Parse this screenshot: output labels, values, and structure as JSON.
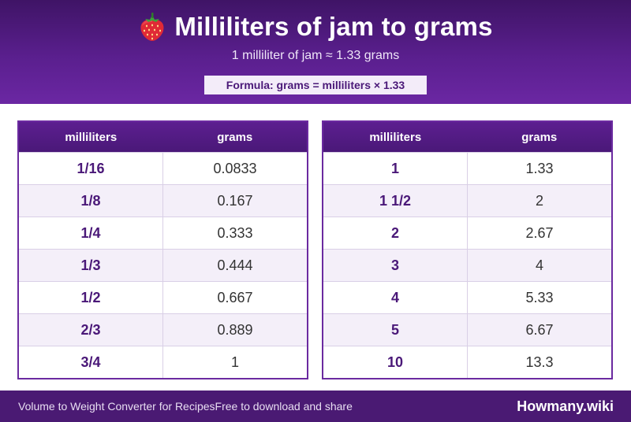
{
  "header": {
    "icon": "strawberry-icon",
    "title": "Milliliters of jam to grams",
    "subtitle": "1 milliliter of jam ≈ 1.33 grams",
    "formula": "Formula: grams = milliliters × 1.33"
  },
  "table_left": {
    "columns": [
      "milliliters",
      "grams"
    ],
    "rows": [
      {
        "ml": "1/16",
        "g": "0.0833"
      },
      {
        "ml": "1/8",
        "g": "0.167"
      },
      {
        "ml": "1/4",
        "g": "0.333"
      },
      {
        "ml": "1/3",
        "g": "0.444"
      },
      {
        "ml": "1/2",
        "g": "0.667"
      },
      {
        "ml": "2/3",
        "g": "0.889"
      },
      {
        "ml": "3/4",
        "g": "1"
      }
    ]
  },
  "table_right": {
    "columns": [
      "milliliters",
      "grams"
    ],
    "rows": [
      {
        "ml": "1",
        "g": "1.33"
      },
      {
        "ml": "1 1/2",
        "g": "2"
      },
      {
        "ml": "2",
        "g": "2.67"
      },
      {
        "ml": "3",
        "g": "4"
      },
      {
        "ml": "4",
        "g": "5.33"
      },
      {
        "ml": "5",
        "g": "6.67"
      },
      {
        "ml": "10",
        "g": "13.3"
      }
    ]
  },
  "footer": {
    "left_text": "Volume to Weight Converter for Recipes",
    "middle_text": "Free to download and share",
    "brand": "Howmany.wiki"
  },
  "colors": {
    "header": "#5a1f8e",
    "accent": "#4a1878",
    "footer": "#4a1a73"
  }
}
